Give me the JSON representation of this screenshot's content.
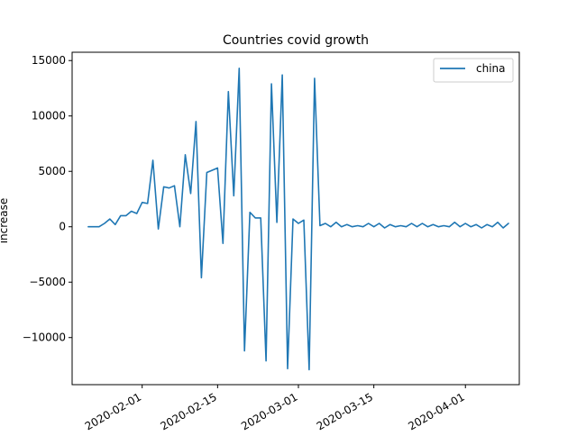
{
  "chart_data": {
    "type": "line",
    "title": "Countries covid growth",
    "xlabel": "",
    "ylabel": "increase",
    "x_start": "2020-01-22",
    "x_end": "2020-04-08",
    "xlim": [
      "2020-01-19",
      "2020-04-11"
    ],
    "ylim": [
      -14250,
      15750
    ],
    "xticks": [
      "2020-02-01",
      "2020-02-15",
      "2020-03-01",
      "2020-03-15",
      "2020-04-01"
    ],
    "yticks": [
      -10000,
      -5000,
      0,
      5000,
      10000,
      15000
    ],
    "ytick_labels": [
      "−10000",
      "−5000",
      "0",
      "5000",
      "10000",
      "15000"
    ],
    "grid": false,
    "legend_position": "top-right",
    "series": [
      {
        "name": "china",
        "color": "#1f77b4",
        "values": [
          0,
          0,
          0,
          300,
          700,
          200,
          1000,
          1000,
          1400,
          1200,
          2200,
          2100,
          6000,
          -200,
          3600,
          3500,
          3700,
          0,
          6500,
          3000,
          9500,
          -4600,
          4900,
          5100,
          5300,
          -1500,
          12200,
          2800,
          14300,
          -11200,
          1300,
          800,
          800,
          -12100,
          12900,
          400,
          13700,
          -12800,
          700,
          300,
          600,
          -12900,
          13400,
          100,
          300,
          0,
          400,
          0,
          200,
          0,
          100,
          0,
          300,
          0,
          300,
          -100,
          200,
          0,
          100,
          0,
          300,
          0,
          300,
          0,
          200,
          0,
          100,
          0,
          400,
          0,
          300,
          0,
          200,
          -100,
          200,
          0,
          400,
          -100,
          300
        ]
      }
    ]
  }
}
